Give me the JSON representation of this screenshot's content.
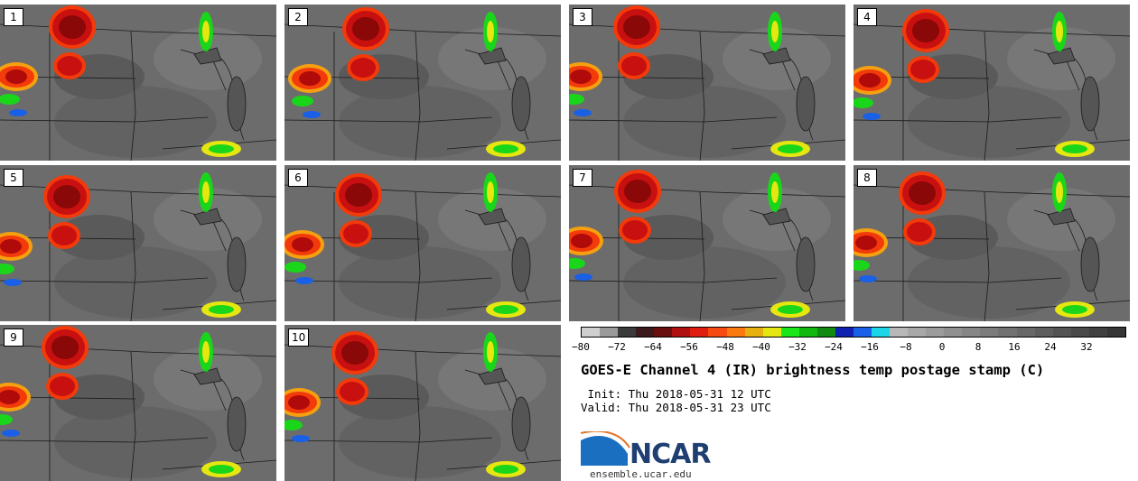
{
  "panels": [
    "1",
    "2",
    "3",
    "4",
    "5",
    "6",
    "7",
    "8",
    "9",
    "10"
  ],
  "colorbar": {
    "colors": [
      "#cfcfcf",
      "#9a9a9a",
      "#3a3a3a",
      "#3a1a1a",
      "#6a0f0f",
      "#b01010",
      "#e01e10",
      "#f54a10",
      "#fa7a10",
      "#e6b010",
      "#e6e610",
      "#1ae61a",
      "#10b810",
      "#108a10",
      "#1020b0",
      "#1a60e6",
      "#1ad6e6",
      "#b8b8b8",
      "#a8a8a8",
      "#9c9c9c",
      "#909090",
      "#868686",
      "#7c7c7c",
      "#727272",
      "#686868",
      "#5e5e5e",
      "#545454",
      "#4a4a4a",
      "#404040",
      "#363636"
    ],
    "ticks": [
      "−80",
      "−72",
      "−64",
      "−56",
      "−48",
      "−40",
      "−32",
      "−24",
      "−16",
      "−8",
      "0",
      "8",
      "16",
      "24",
      "32"
    ]
  },
  "title": "GOES-E Channel 4 (IR) brightness temp postage stamp (C)",
  "init": " Init: Thu 2018-05-31 12 UTC",
  "valid": "Valid: Thu 2018-05-31 23 UTC",
  "logo_text": "NCAR",
  "url": "ensemble.ucar.edu",
  "colors": {
    "storm_core": "#b00a0a",
    "storm_edge": "#f23a0a",
    "background": "#6e6e6e",
    "map_lines": "#1a1a1a"
  }
}
